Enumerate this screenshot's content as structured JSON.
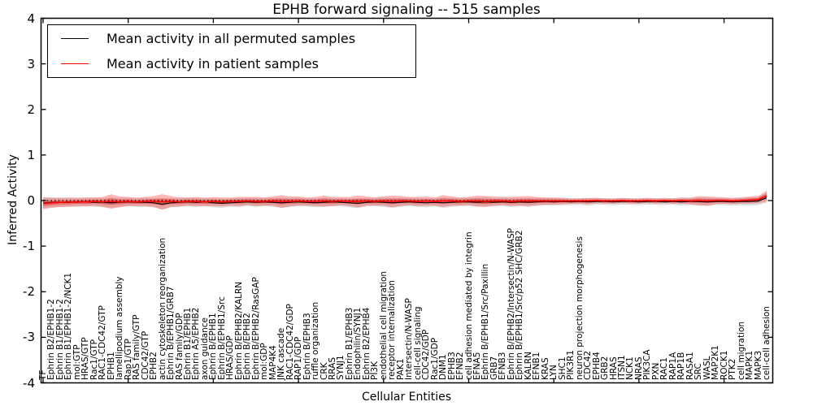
{
  "figure": {
    "title": "EPHB forward signaling -- 515 samples",
    "xlabel": "Cellular Entities",
    "ylabel": "Inferred Activity"
  },
  "legend": {
    "entries": [
      {
        "label": "Mean activity in all permuted samples",
        "color": "#000000"
      },
      {
        "label": "Mean activity in patient samples",
        "color": "#ff0000"
      }
    ]
  },
  "chart_data": {
    "type": "line",
    "title": "EPHB forward signaling -- 515 samples",
    "xlabel": "Cellular Entities",
    "ylabel": "Inferred Activity",
    "ylim": [
      -4,
      4
    ],
    "yticks": [
      -4,
      -3,
      -2,
      -1,
      0,
      1,
      2,
      3,
      4
    ],
    "grid": false,
    "legend_position": "upper left",
    "colors": {
      "permuted_line": "#000000",
      "patient_line": "#ff0000",
      "permuted_band": "rgba(110,110,110,0.22)",
      "patient_band_outer": "rgba(255,0,0,0.28)",
      "patient_band_inner": "rgba(225,30,30,0.42)",
      "reference_dotted": "#000000"
    },
    "reference_line": {
      "style": "dotted",
      "value": 0
    },
    "categories": [
      "TF",
      "Ephrin B2/EPHB1-2",
      "Ephrin B1/EPHB1-2",
      "Ephrin B1/EPHB1-2/NCK1",
      "mol:GTP",
      "HRAS/GTP",
      "Rac1/GTP",
      "RAC1-CDC42/GTP",
      "EPHB1",
      "lamellipodium assembly",
      "Rap1/GTP",
      "RAS family/GTP",
      "CDC42/GTP",
      "EPHB2",
      "actin cytoskeleton reorganization",
      "Ephrin B/EPHB1/GRB7",
      "RAS family/GDP",
      "Ephrin B1/EPHB1",
      "Ephrin A5/EPHB2",
      "axon guidance",
      "Ephrin B/EPHB1",
      "Ephrin B/EPHB1/Src",
      "HRAS/GDP",
      "Ephrin B/EPHB2/KALRN",
      "Ephrin B/EPHB2",
      "Ephrin B/EPHB2/RasGAP",
      "mol:GDP",
      "MAP4K4",
      "JNK cascade",
      "RAC1-CDC42/GDP",
      "RAP1/GDP",
      "Ephrin B/EPHB3",
      "ruffle organization",
      "CRK",
      "RRAS",
      "SYNJ1",
      "Ephrin B1/EPHB3",
      "Endophilin/SYNJ1",
      "Ephrin B2/EPHB4",
      "PI3K",
      "endothelial cell migration",
      "receptor internalization",
      "PAK1",
      "Intersectin/N-WASP",
      "cell-cell signaling",
      "CDC42/GDP",
      "Rac1/GDP",
      "DNM1",
      "EPHB3",
      "EFNB2",
      "cell adhesion mediated by integrin",
      "EFNA5",
      "Ephrin B/EPHB1/Src/Paxillin",
      "GRB7",
      "EFNB3",
      "Ephrin B/EPHB2/Intersectin/N-WASP",
      "Ephrin B/EPHB1/Src/p52 SHC/GRB2",
      "KALRN",
      "EFNB1",
      "KRAS",
      "LYN",
      "SHC1",
      "PIK3R1",
      "neuron projection morphogenesis",
      "CDC42",
      "EPHB4",
      "GRB2",
      "HRAS",
      "ITSN1",
      "NCK1",
      "NRAS",
      "PIK3CA",
      "PXN",
      "RAC1",
      "RAP1A",
      "RAP1B",
      "RASA1",
      "SRC",
      "WASL",
      "MAP2K1",
      "ROCK1",
      "PTK2",
      "cell migration",
      "MAPK1",
      "MAPK3",
      "cell-cell adhesion"
    ],
    "series": [
      {
        "name": "Mean activity in all permuted samples",
        "values": [
          -0.05,
          -0.04,
          -0.04,
          -0.03,
          -0.04,
          -0.03,
          -0.04,
          -0.04,
          -0.05,
          -0.04,
          -0.03,
          -0.04,
          -0.04,
          -0.05,
          -0.08,
          -0.05,
          -0.04,
          -0.03,
          -0.04,
          -0.03,
          -0.05,
          -0.06,
          -0.05,
          -0.04,
          -0.03,
          -0.04,
          -0.03,
          -0.04,
          -0.05,
          -0.04,
          -0.03,
          -0.04,
          -0.05,
          -0.04,
          -0.03,
          -0.04,
          -0.05,
          -0.06,
          -0.04,
          -0.03,
          -0.04,
          -0.05,
          -0.04,
          -0.03,
          -0.04,
          -0.05,
          -0.04,
          -0.05,
          -0.04,
          -0.03,
          -0.03,
          -0.04,
          -0.03,
          -0.04,
          -0.03,
          -0.04,
          -0.03,
          -0.04,
          -0.03,
          -0.02,
          -0.03,
          -0.02,
          -0.03,
          -0.02,
          -0.03,
          -0.02,
          -0.02,
          -0.03,
          -0.02,
          -0.02,
          -0.03,
          -0.02,
          -0.02,
          -0.03,
          -0.02,
          -0.03,
          -0.02,
          -0.02,
          -0.03,
          -0.02,
          -0.02,
          -0.03,
          -0.02,
          -0.02,
          -0.01,
          0.06
        ],
        "band_halfwidth": [
          0.12,
          0.11,
          0.1,
          0.1,
          0.1,
          0.09,
          0.1,
          0.1,
          0.11,
          0.1,
          0.09,
          0.1,
          0.1,
          0.1,
          0.12,
          0.1,
          0.1,
          0.09,
          0.1,
          0.09,
          0.1,
          0.1,
          0.09,
          0.1,
          0.09,
          0.1,
          0.09,
          0.1,
          0.11,
          0.1,
          0.09,
          0.09,
          0.1,
          0.1,
          0.09,
          0.09,
          0.1,
          0.11,
          0.09,
          0.09,
          0.1,
          0.11,
          0.1,
          0.09,
          0.1,
          0.1,
          0.09,
          0.11,
          0.1,
          0.09,
          0.09,
          0.1,
          0.1,
          0.09,
          0.09,
          0.1,
          0.09,
          0.1,
          0.09,
          0.08,
          0.08,
          0.08,
          0.07,
          0.07,
          0.08,
          0.07,
          0.07,
          0.07,
          0.07,
          0.07,
          0.07,
          0.07,
          0.07,
          0.07,
          0.07,
          0.08,
          0.08,
          0.09,
          0.09,
          0.08,
          0.08,
          0.08,
          0.08,
          0.09,
          0.09,
          0.11
        ]
      },
      {
        "name": "Mean activity in patient samples",
        "values": [
          -0.06,
          -0.05,
          -0.04,
          -0.04,
          -0.03,
          -0.03,
          -0.02,
          -0.03,
          -0.02,
          -0.03,
          -0.02,
          -0.03,
          -0.02,
          -0.02,
          -0.03,
          -0.02,
          -0.03,
          -0.02,
          -0.02,
          -0.03,
          -0.02,
          -0.03,
          -0.02,
          -0.02,
          -0.01,
          -0.02,
          -0.02,
          -0.01,
          -0.02,
          -0.02,
          -0.01,
          -0.02,
          -0.02,
          -0.01,
          -0.02,
          -0.01,
          -0.02,
          -0.02,
          -0.01,
          -0.02,
          -0.01,
          -0.02,
          -0.01,
          -0.01,
          -0.02,
          -0.01,
          -0.02,
          -0.01,
          -0.01,
          -0.02,
          -0.01,
          -0.01,
          -0.02,
          -0.01,
          -0.01,
          -0.02,
          -0.01,
          -0.01,
          -0.01,
          -0.01,
          -0.01,
          -0.01,
          -0.01,
          -0.01,
          -0.01,
          0.0,
          -0.01,
          -0.01,
          0.0,
          -0.01,
          -0.01,
          0.0,
          -0.01,
          0.0,
          -0.01,
          0.0,
          -0.01,
          0.0,
          -0.01,
          0.0,
          0.0,
          -0.01,
          0.0,
          0.01,
          0.02,
          0.1
        ],
        "band_halfwidth": [
          0.13,
          0.11,
          0.1,
          0.1,
          0.09,
          0.1,
          0.09,
          0.11,
          0.16,
          0.12,
          0.1,
          0.09,
          0.1,
          0.12,
          0.17,
          0.12,
          0.1,
          0.09,
          0.1,
          0.09,
          0.1,
          0.1,
          0.09,
          0.1,
          0.09,
          0.1,
          0.09,
          0.1,
          0.14,
          0.11,
          0.1,
          0.09,
          0.1,
          0.12,
          0.1,
          0.09,
          0.1,
          0.13,
          0.1,
          0.09,
          0.1,
          0.13,
          0.11,
          0.09,
          0.1,
          0.1,
          0.09,
          0.13,
          0.1,
          0.09,
          0.09,
          0.12,
          0.12,
          0.1,
          0.09,
          0.1,
          0.1,
          0.11,
          0.09,
          0.08,
          0.08,
          0.07,
          0.06,
          0.06,
          0.07,
          0.06,
          0.06,
          0.06,
          0.06,
          0.06,
          0.06,
          0.06,
          0.06,
          0.06,
          0.06,
          0.07,
          0.07,
          0.1,
          0.1,
          0.08,
          0.07,
          0.07,
          0.07,
          0.08,
          0.08,
          0.12
        ]
      }
    ]
  }
}
